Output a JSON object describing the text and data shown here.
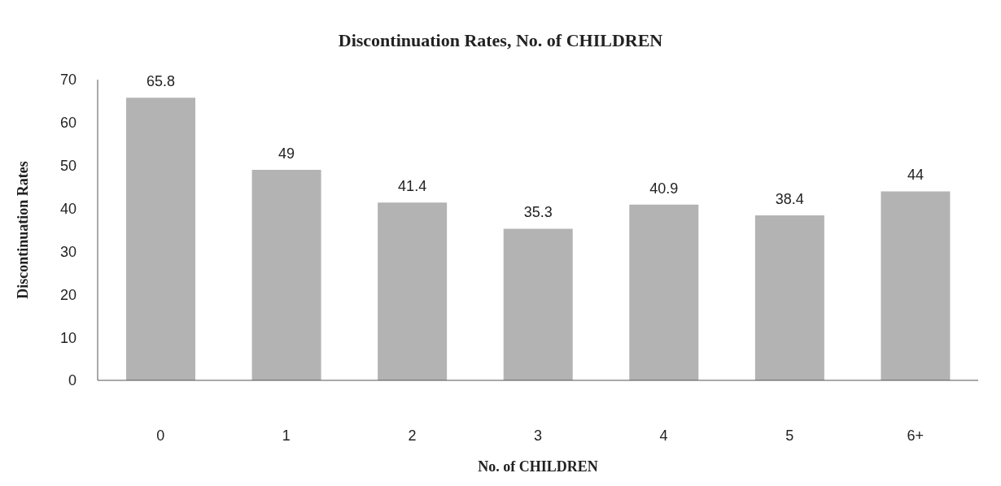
{
  "chart_data": {
    "type": "bar",
    "title": "Discontinuation Rates, No. of CHILDREN",
    "xlabel": "No. of CHILDREN",
    "ylabel": "Discontinuation Rates",
    "categories": [
      "0",
      "1",
      "2",
      "3",
      "4",
      "5",
      "6+"
    ],
    "values": [
      65.8,
      49,
      41.4,
      35.3,
      40.9,
      38.4,
      44
    ],
    "color": "#b3b3b3",
    "ylim": [
      0,
      70
    ],
    "yticks": [
      0,
      10,
      20,
      30,
      40,
      50,
      60,
      70
    ],
    "grid": false,
    "data_labels": true
  }
}
